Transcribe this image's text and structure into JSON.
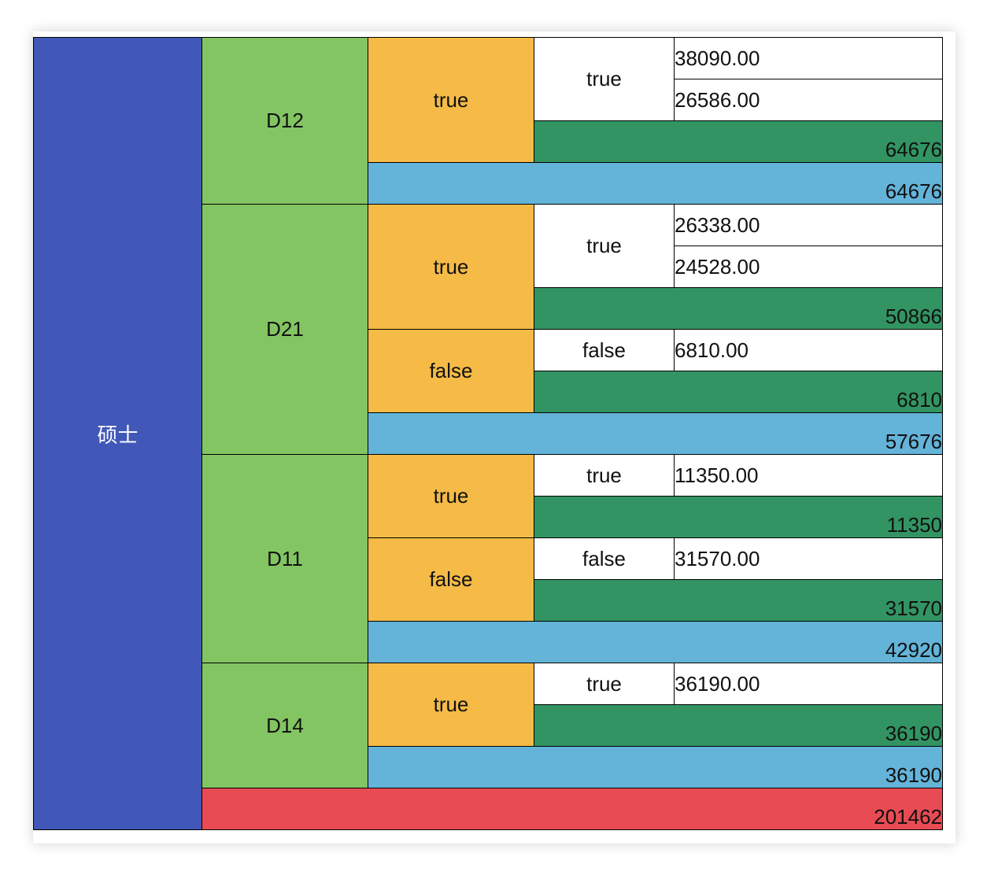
{
  "table": {
    "degree": "硕士",
    "departments": [
      {
        "name": "D12",
        "categories": [
          {
            "label": "true",
            "groups": [
              {
                "label": "true",
                "values": [
                  "38090.00",
                  "26586.00"
                ],
                "subtotal": "64676"
              }
            ]
          }
        ],
        "total": "64676"
      },
      {
        "name": "D21",
        "categories": [
          {
            "label": "true",
            "groups": [
              {
                "label": "true",
                "values": [
                  "26338.00",
                  "24528.00"
                ],
                "subtotal": "50866"
              }
            ]
          },
          {
            "label": "false",
            "groups": [
              {
                "label": "false",
                "values": [
                  "6810.00"
                ],
                "subtotal": "6810"
              }
            ]
          }
        ],
        "total": "57676"
      },
      {
        "name": "D11",
        "categories": [
          {
            "label": "true",
            "groups": [
              {
                "label": "true",
                "values": [
                  "11350.00"
                ],
                "subtotal": "11350"
              }
            ]
          },
          {
            "label": "false",
            "groups": [
              {
                "label": "false",
                "values": [
                  "31570.00"
                ],
                "subtotal": "31570"
              }
            ]
          }
        ],
        "total": "42920"
      },
      {
        "name": "D14",
        "categories": [
          {
            "label": "true",
            "groups": [
              {
                "label": "true",
                "values": [
                  "36190.00"
                ],
                "subtotal": "36190"
              }
            ]
          }
        ],
        "total": "36190"
      }
    ],
    "grand_total": "201462"
  },
  "colors": {
    "degree_bg": "#4158b8",
    "department_bg": "#82c562",
    "category_bg": "#f5bb46",
    "subtotal_bg": "#329462",
    "department_total_bg": "#64b3d9",
    "grand_total_bg": "#e84b53"
  }
}
